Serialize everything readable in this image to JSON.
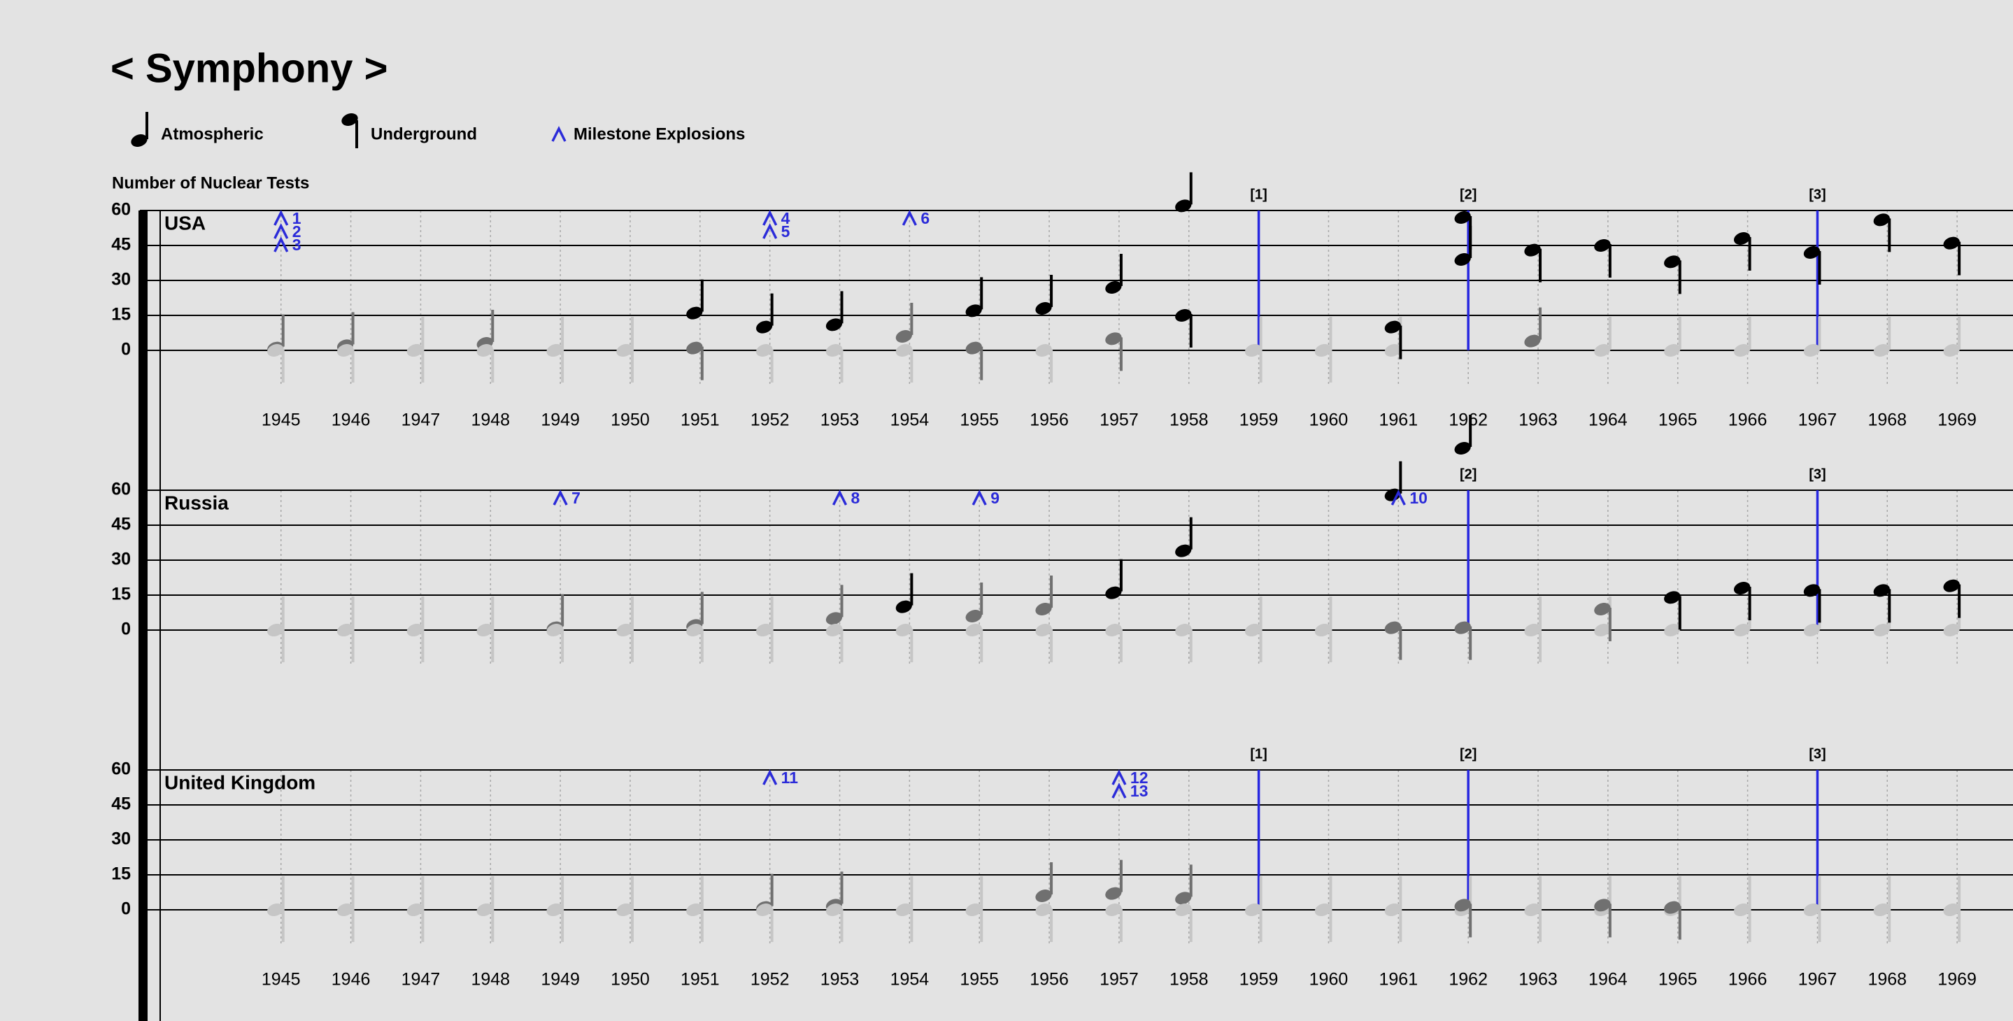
{
  "title": "< Symphony >",
  "ylabel": "Number of Nuclear Tests",
  "milestone_label": "Milestone Explosions",
  "chart_data": [
    {
      "type": "notes",
      "title": "USA",
      "x": [
        1945,
        1946,
        1947,
        1948,
        1949,
        1950,
        1951,
        1952,
        1953,
        1954,
        1955,
        1956,
        1957,
        1958,
        1959,
        1960,
        1961,
        1962,
        1963,
        1964,
        1965,
        1966,
        1967,
        1968,
        1969
      ],
      "xticks": [
        1945,
        1946,
        1947,
        1948,
        1949,
        1950,
        1951,
        1952,
        1953,
        1954,
        1955,
        1956,
        1957,
        1958,
        1959,
        1960,
        1961,
        1962,
        1963,
        1964,
        1965,
        1966,
        1967,
        1968,
        1969
      ],
      "xlim": [
        1943.2,
        1969.8
      ],
      "ylim": [
        0,
        60
      ],
      "yticks": [
        0,
        15,
        30,
        45,
        60
      ],
      "xgrid": true,
      "series": [
        {
          "name": "Atmospheric",
          "values": [
            1,
            2,
            0,
            3,
            0,
            0,
            16,
            10,
            11,
            6,
            17,
            18,
            27,
            62,
            0,
            0,
            0,
            39,
            4,
            0,
            0,
            0,
            0,
            0,
            0
          ]
        },
        {
          "name": "Underground",
          "values": [
            0,
            0,
            0,
            0,
            0,
            0,
            1,
            0,
            0,
            0,
            1,
            0,
            5,
            15,
            0,
            0,
            10,
            57,
            43,
            45,
            38,
            48,
            42,
            56,
            46
          ]
        }
      ],
      "milestones": [
        {
          "x": 1945,
          "label": "1"
        },
        {
          "x": 1945,
          "label": "2"
        },
        {
          "x": 1945,
          "label": "3"
        },
        {
          "x": 1952,
          "label": "4"
        },
        {
          "x": 1952,
          "label": "5"
        },
        {
          "x": 1954,
          "label": "6"
        }
      ],
      "measures": [
        {
          "x": 1959,
          "label": "[1]"
        },
        {
          "x": 1962,
          "label": "[2]"
        },
        {
          "x": 1967,
          "label": "[3]"
        }
      ]
    },
    {
      "type": "notes",
      "title": "Russia",
      "x": [
        1945,
        1946,
        1947,
        1948,
        1949,
        1950,
        1951,
        1952,
        1953,
        1954,
        1955,
        1956,
        1957,
        1958,
        1959,
        1960,
        1961,
        1962,
        1963,
        1964,
        1965,
        1966,
        1967,
        1968,
        1969
      ],
      "xlim": [
        1943.2,
        1969.8
      ],
      "ylim": [
        0,
        60
      ],
      "yticks": [
        0,
        15,
        30,
        45,
        60
      ],
      "xgrid": true,
      "series": [
        {
          "values": [
            0,
            0,
            0,
            0,
            1,
            0,
            2,
            0,
            5,
            10,
            6,
            9,
            16,
            34,
            0,
            0,
            58,
            78,
            0,
            0,
            0,
            0,
            0,
            0,
            0
          ]
        },
        {
          "values": [
            0,
            0,
            0,
            0,
            0,
            0,
            0,
            0,
            0,
            0,
            0,
            0,
            0,
            0,
            0,
            0,
            1,
            1,
            0,
            9,
            14,
            18,
            17,
            17,
            19
          ]
        }
      ],
      "milestones": [
        {
          "x": 1949,
          "label": "7"
        },
        {
          "x": 1953,
          "label": "8"
        },
        {
          "x": 1955,
          "label": "9"
        },
        {
          "x": 1961,
          "label": "10"
        }
      ],
      "measures": [
        {
          "x": 1962,
          "label": "[2]"
        },
        {
          "x": 1967,
          "label": "[3]"
        }
      ]
    },
    {
      "type": "notes",
      "title": "United Kingdom",
      "x": [
        1945,
        1946,
        1947,
        1948,
        1949,
        1950,
        1951,
        1952,
        1953,
        1954,
        1955,
        1956,
        1957,
        1958,
        1959,
        1960,
        1961,
        1962,
        1963,
        1964,
        1965,
        1966,
        1967,
        1968,
        1969
      ],
      "xticks": [
        1945,
        1946,
        1947,
        1948,
        1949,
        1950,
        1951,
        1952,
        1953,
        1954,
        1955,
        1956,
        1957,
        1958,
        1959,
        1960,
        1961,
        1962,
        1963,
        1964,
        1965,
        1966,
        1967,
        1968,
        1969
      ],
      "xlim": [
        1943.2,
        1969.8
      ],
      "ylim": [
        0,
        60
      ],
      "yticks": [
        0,
        15,
        30,
        45,
        60
      ],
      "xgrid": true,
      "series": [
        {
          "values": [
            0,
            0,
            0,
            0,
            0,
            0,
            0,
            1,
            2,
            0,
            0,
            6,
            7,
            5,
            0,
            0,
            0,
            0,
            0,
            0,
            0,
            0,
            0,
            0,
            0
          ]
        },
        {
          "values": [
            0,
            0,
            0,
            0,
            0,
            0,
            0,
            0,
            0,
            0,
            0,
            0,
            0,
            0,
            0,
            0,
            0,
            2,
            0,
            2,
            1,
            0,
            0,
            0,
            0
          ]
        }
      ],
      "milestones": [
        {
          "x": 1952,
          "label": "11"
        },
        {
          "x": 1957,
          "label": "12"
        },
        {
          "x": 1957,
          "label": "13"
        }
      ],
      "measures": [
        {
          "x": 1959,
          "label": "[1]"
        },
        {
          "x": 1962,
          "label": "[2]"
        },
        {
          "x": 1967,
          "label": "[3]"
        }
      ]
    }
  ]
}
